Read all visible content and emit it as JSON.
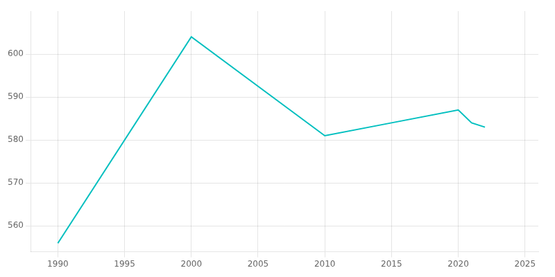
{
  "chart_data": {
    "type": "line",
    "x": [
      1990,
      2000,
      2010,
      2015,
      2020,
      2021,
      2022
    ],
    "values": [
      556,
      604,
      581,
      584,
      587,
      584,
      583
    ],
    "color": "#00BFBF",
    "xlim": [
      1988,
      2026
    ],
    "ylim": [
      554,
      610
    ],
    "xticks": [
      1990,
      1995,
      2000,
      2005,
      2010,
      2015,
      2020,
      2025
    ],
    "yticks": [
      560,
      570,
      580,
      590,
      600
    ],
    "grid": true
  }
}
